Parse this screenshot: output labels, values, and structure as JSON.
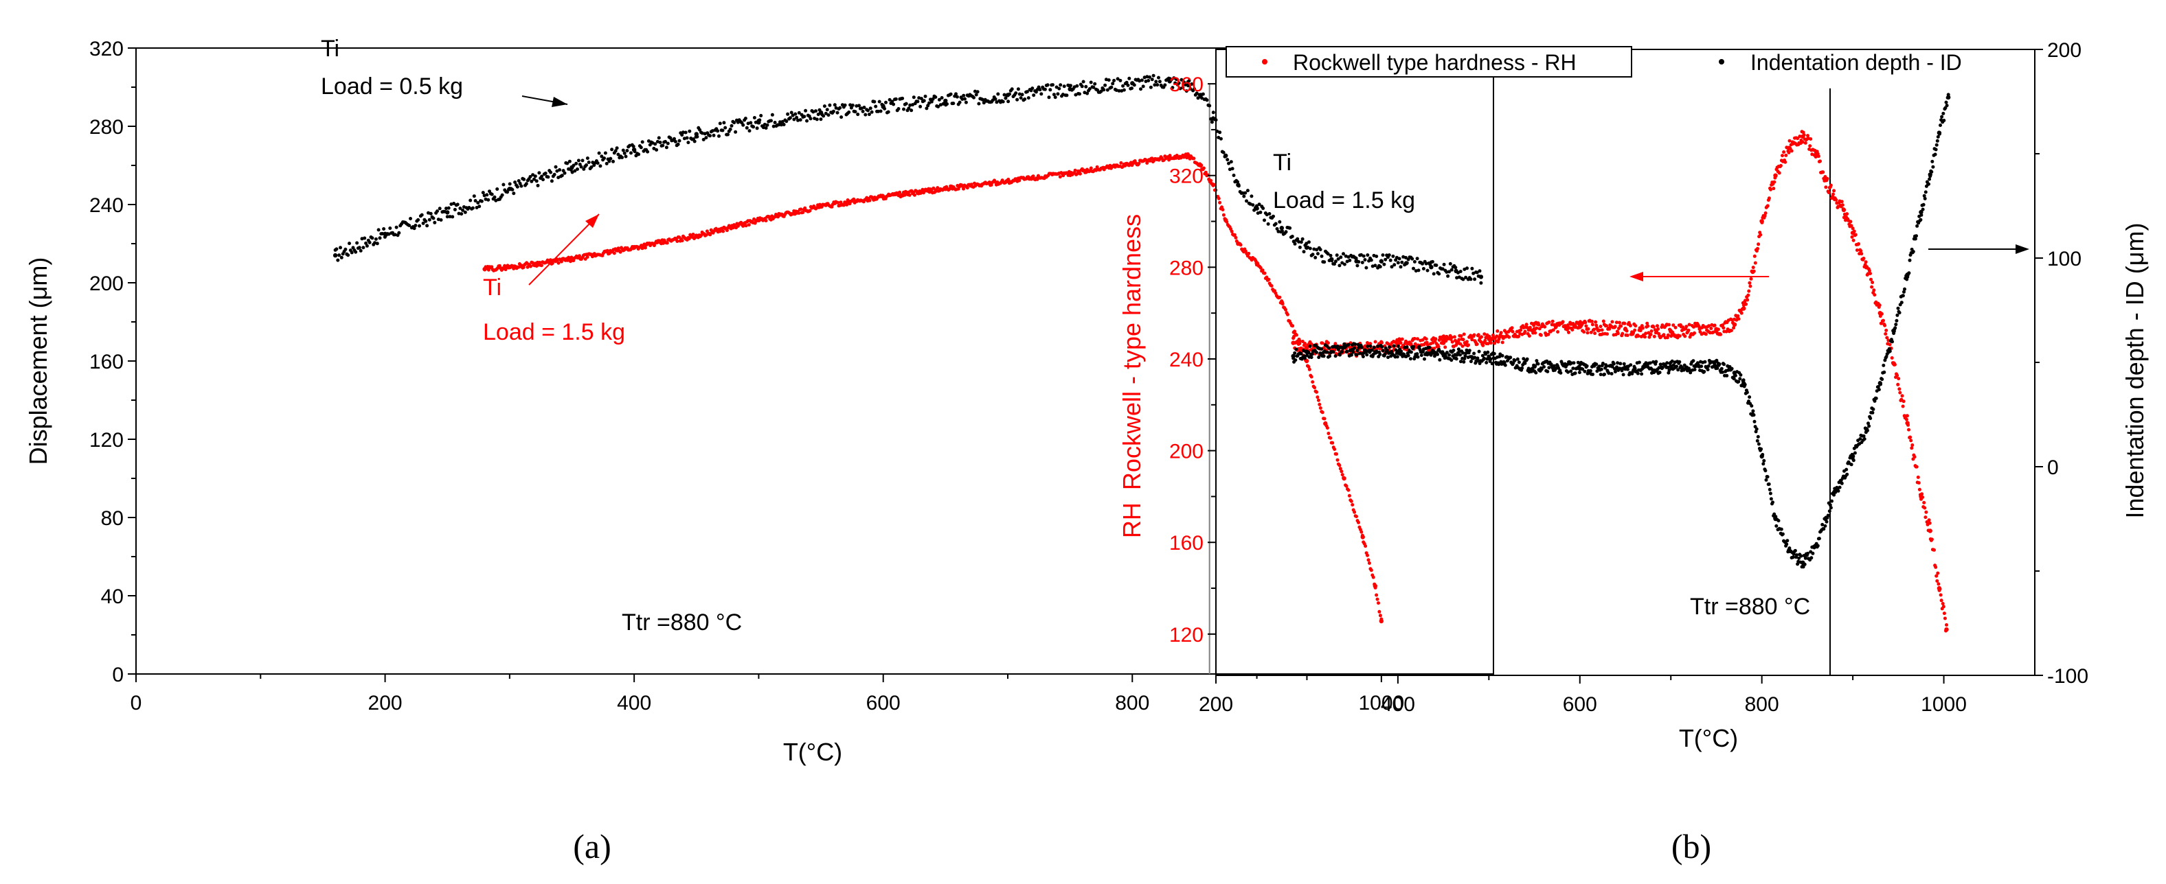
{
  "colors": {
    "black": "#000000",
    "red": "#ff0000",
    "grid_line": "#808080"
  },
  "chart_data": [
    {
      "type": "scatter",
      "panel_label": "(a)",
      "xlabel": "T(°C)",
      "ylabel": "Displacement (μm)",
      "xlim": [
        0,
        1090
      ],
      "ylim": [
        0,
        320
      ],
      "xticks": [
        "0",
        "200",
        "400",
        "600",
        "800",
        "1000"
      ],
      "yticks": [
        "0",
        "40",
        "80",
        "120",
        "160",
        "200",
        "240",
        "280",
        "320"
      ],
      "grid": false,
      "vline_x": 862,
      "annotations": {
        "black_title": "Ti",
        "black_load": "Load = 0.5 kg",
        "red_title": "Ti",
        "red_load": "Load = 1.5 kg",
        "ttr_text": "Ttr =880 °C"
      },
      "series": [
        {
          "name": "Ti, Load = 0.5 kg",
          "color": "black",
          "x": [
            160,
            200,
            250,
            300,
            350,
            400,
            450,
            500,
            550,
            600,
            650,
            700,
            750,
            800,
            830,
            845,
            855,
            865,
            875,
            885,
            900,
            920,
            940,
            960,
            980,
            1000,
            1020,
            1040,
            1060,
            1080
          ],
          "y": [
            214,
            225,
            236,
            248,
            259,
            268,
            276,
            282,
            287,
            290,
            293,
            296,
            299,
            302,
            303,
            301,
            296,
            284,
            265,
            250,
            238,
            228,
            218,
            212,
            211,
            211,
            210,
            208,
            206,
            203
          ]
        },
        {
          "name": "Ti, Load = 1.5 kg",
          "color": "red",
          "x": [
            280,
            300,
            350,
            400,
            450,
            500,
            550,
            600,
            650,
            700,
            750,
            800,
            830,
            845,
            855,
            865,
            875,
            885,
            900,
            920,
            940,
            955,
            970,
            985,
            995,
            1000
          ],
          "y": [
            207,
            208,
            212,
            218,
            224,
            232,
            239,
            244,
            248,
            252,
            256,
            261,
            264,
            265,
            260,
            250,
            232,
            220,
            210,
            190,
            160,
            128,
            100,
            70,
            45,
            27
          ]
        }
      ]
    },
    {
      "type": "scatter",
      "panel_label": "(b)",
      "xlabel": "T(°C)",
      "ylabel_left_prefix": "RH",
      "ylabel_left": "Rockwell - type hardness",
      "ylabel_right": "Indentation depth - ID (μm)",
      "xlim": [
        200,
        1100
      ],
      "ylim_left": [
        102,
        375
      ],
      "ylim_right": [
        -100,
        200
      ],
      "xticks": [
        "200",
        "400",
        "600",
        "800",
        "1000"
      ],
      "yticks_left": [
        "120",
        "160",
        "200",
        "240",
        "280",
        "320",
        "360"
      ],
      "yticks_right": [
        "-100",
        "0",
        "100",
        "200"
      ],
      "grid": false,
      "legend_position": "top",
      "legend": [
        "Rockwell type hardness - RH",
        "Indentation depth - ID"
      ],
      "vline_x": 875,
      "annotations": {
        "title": "Ti",
        "load": "Load = 1.5 kg",
        "ttr_text": "Ttr =880 °C"
      },
      "series": [
        {
          "name": "Rockwell type hardness - RH",
          "color": "red",
          "axis": "left",
          "x": [
            285,
            300,
            350,
            400,
            450,
            500,
            550,
            600,
            650,
            700,
            750,
            770,
            780,
            790,
            800,
            815,
            830,
            845,
            860,
            870,
            880,
            890,
            900,
            915,
            930,
            945,
            960,
            975,
            985,
            995,
            1003
          ],
          "y": [
            247,
            245,
            244,
            246,
            247,
            249,
            253,
            254,
            253,
            252,
            253,
            255,
            262,
            278,
            300,
            320,
            332,
            337,
            330,
            318,
            310,
            305,
            295,
            280,
            260,
            238,
            212,
            180,
            165,
            140,
            122
          ]
        },
        {
          "name": "Indentation depth - ID",
          "color": "black",
          "axis": "right",
          "x": [
            285,
            300,
            350,
            400,
            450,
            500,
            550,
            600,
            650,
            700,
            750,
            770,
            780,
            790,
            800,
            815,
            830,
            845,
            860,
            870,
            880,
            890,
            900,
            915,
            930,
            945,
            960,
            975,
            985,
            995,
            1005
          ],
          "y": [
            53,
            55,
            56,
            55,
            54,
            52,
            48,
            47,
            47,
            48,
            48,
            45,
            40,
            25,
            5,
            -25,
            -40,
            -46,
            -38,
            -25,
            -12,
            -5,
            5,
            18,
            40,
            65,
            92,
            122,
            140,
            160,
            177
          ]
        }
      ]
    }
  ]
}
